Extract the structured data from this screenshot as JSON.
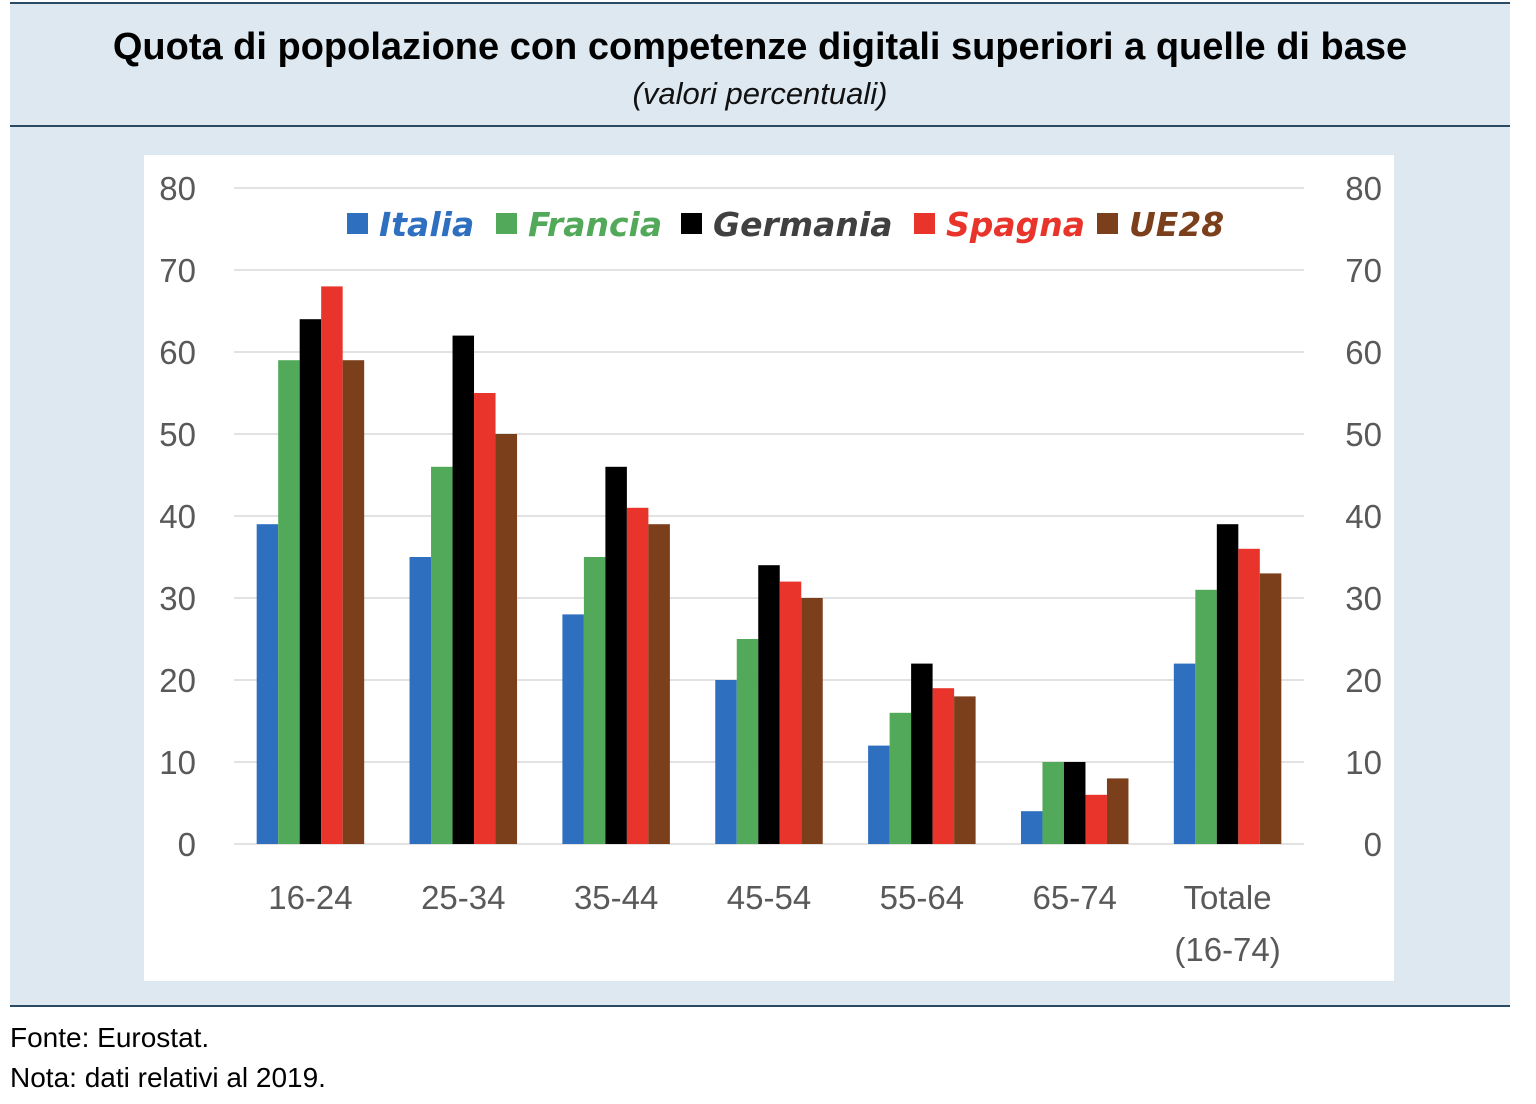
{
  "title": "Quota di popolazione con competenze digitali superiori a quelle di base",
  "subtitle": "(valori percentuali)",
  "footer": {
    "source": "Fonte: Eurostat.",
    "note": "Nota: dati relativi al 2019."
  },
  "chart_data": {
    "type": "bar",
    "categories": [
      "16-24",
      "25-34",
      "35-44",
      "45-54",
      "55-64",
      "65-74",
      "Totale (16-74)"
    ],
    "category_lines": [
      [
        "16-24"
      ],
      [
        "25-34"
      ],
      [
        "35-44"
      ],
      [
        "45-54"
      ],
      [
        "55-64"
      ],
      [
        "65-74"
      ],
      [
        "Totale",
        "(16-74)"
      ]
    ],
    "series": [
      {
        "name": "Italia",
        "color": "#2e6fbf",
        "values": [
          39,
          35,
          28,
          20,
          12,
          4,
          22
        ]
      },
      {
        "name": "Francia",
        "color": "#52a95a",
        "values": [
          59,
          46,
          35,
          25,
          16,
          10,
          31
        ]
      },
      {
        "name": "Germania",
        "color": "#000000",
        "values": [
          64,
          62,
          46,
          34,
          22,
          10,
          39
        ]
      },
      {
        "name": "Spagna",
        "color": "#e8342a",
        "values": [
          68,
          55,
          41,
          32,
          19,
          6,
          36
        ]
      },
      {
        "name": "UE28",
        "color": "#7b3f1c",
        "values": [
          59,
          50,
          39,
          30,
          18,
          8,
          33
        ]
      }
    ],
    "legend_text_colors": [
      "#2e6fbf",
      "#52a95a",
      "#404040",
      "#e8342a",
      "#7b3f1c"
    ],
    "ylim": [
      0,
      80
    ],
    "yticks": [
      0,
      10,
      20,
      30,
      40,
      50,
      60,
      70,
      80
    ],
    "secondary_y_axis": true,
    "grid": true,
    "legend_position": "top"
  }
}
